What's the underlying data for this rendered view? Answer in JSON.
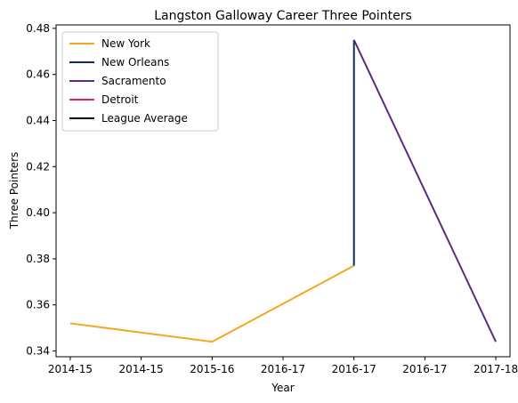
{
  "chart_data": {
    "type": "line",
    "title": "Langston Galloway Career Three Pointers",
    "xlabel": "Year",
    "ylabel": "Three Pointers",
    "x_ticks": [
      "2014-15",
      "2014-15",
      "2015-16",
      "2016-17",
      "2016-17",
      "2016-17",
      "2017-18"
    ],
    "x_range": [
      -0.1,
      3.1
    ],
    "ylim": [
      0.3375,
      0.4815
    ],
    "y_ticks": [
      0.34,
      0.36,
      0.38,
      0.4,
      0.42,
      0.44,
      0.46,
      0.48
    ],
    "y_tick_labels": [
      "0.34",
      "0.36",
      "0.38",
      "0.40",
      "0.42",
      "0.44",
      "0.46",
      "0.48"
    ],
    "grid": false,
    "legend_position": "top-left",
    "series": [
      {
        "name": "New York",
        "color": "#f5a623",
        "x": [
          0,
          1,
          2
        ],
        "y": [
          0.352,
          0.344,
          0.377
        ]
      },
      {
        "name": "New Orleans",
        "color": "#0c2c56",
        "x": [
          2,
          2
        ],
        "y": [
          0.377,
          0.475
        ]
      },
      {
        "name": "Sacramento",
        "color": "#5b2b82",
        "x": [
          2,
          3
        ],
        "y": [
          0.475,
          0.344
        ]
      },
      {
        "name": "Detroit",
        "color": "#e0235f",
        "x": [],
        "y": []
      },
      {
        "name": "League Average",
        "color": "#000000",
        "x": [],
        "y": []
      }
    ]
  }
}
